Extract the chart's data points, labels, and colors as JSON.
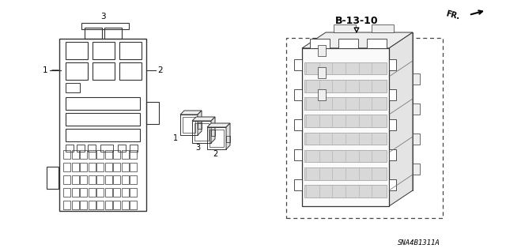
{
  "bg_color": "#ffffff",
  "title_label": "B-13-10",
  "part_number": "SNA4B1311A",
  "fr_label": "FR.",
  "fig_width": 6.4,
  "fig_height": 3.19,
  "lc": "#555555",
  "lw_main": 0.7
}
